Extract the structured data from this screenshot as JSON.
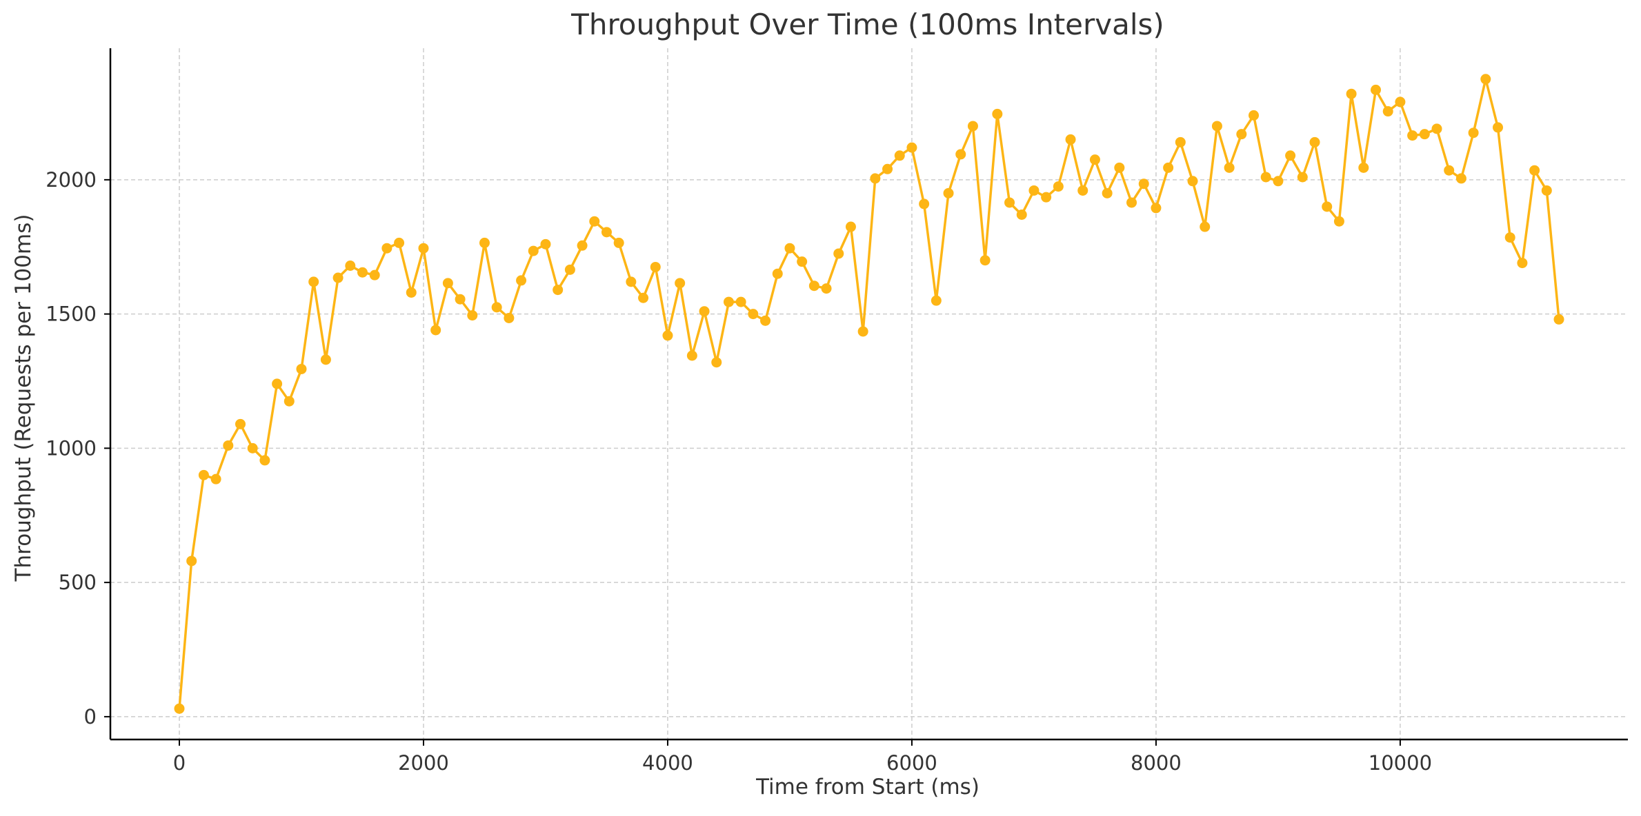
{
  "chart_data": {
    "type": "line",
    "title": "Throughput Over Time (100ms Intervals)",
    "xlabel": "Time from Start (ms)",
    "ylabel": "Throughput (Requests per 100ms)",
    "xlim": [
      -565,
      11865
    ],
    "ylim": [
      -85,
      2490
    ],
    "xticks": [
      0,
      2000,
      4000,
      6000,
      8000,
      10000
    ],
    "xtick_labels": [
      "0",
      "2000",
      "4000",
      "6000",
      "8000",
      "10000"
    ],
    "yticks": [
      0,
      500,
      1000,
      1500,
      2000
    ],
    "ytick_labels": [
      "0",
      "500",
      "1000",
      "1500",
      "2000"
    ],
    "grid": true,
    "legend": "none",
    "line_color": "#FDB515",
    "series": [
      {
        "x": [
          0,
          100,
          200,
          300,
          400,
          500,
          600,
          700,
          800,
          900,
          1000,
          1100,
          1200,
          1300,
          1400,
          1500,
          1600,
          1700,
          1800,
          1900,
          2000,
          2100,
          2200,
          2300,
          2400,
          2500,
          2600,
          2700,
          2800,
          2900,
          3000,
          3100,
          3200,
          3300,
          3400,
          3500,
          3600,
          3700,
          3800,
          3900,
          4000,
          4100,
          4200,
          4300,
          4400,
          4500,
          4600,
          4700,
          4800,
          4900,
          5000,
          5100,
          5200,
          5300,
          5400,
          5500,
          5600,
          5700,
          5800,
          5900,
          6000,
          6100,
          6200,
          6300,
          6400,
          6500,
          6600,
          6700,
          6800,
          6900,
          7000,
          7100,
          7200,
          7300,
          7400,
          7500,
          7600,
          7700,
          7800,
          7900,
          8000,
          8100,
          8200,
          8300,
          8400,
          8500,
          8600,
          8700,
          8800,
          8900,
          9000,
          9100,
          9200,
          9300,
          9400,
          9500,
          9600,
          9700,
          9800,
          9900,
          10000,
          10100,
          10200,
          10300,
          10400,
          10500,
          10600,
          10700,
          10800,
          10900,
          11000,
          11100,
          11200,
          11300
        ],
        "y": [
          30,
          580,
          900,
          885,
          1010,
          1090,
          1000,
          955,
          1240,
          1175,
          1295,
          1620,
          1330,
          1635,
          1680,
          1655,
          1645,
          1745,
          1765,
          1580,
          1745,
          1440,
          1615,
          1555,
          1495,
          1765,
          1525,
          1485,
          1625,
          1735,
          1760,
          1590,
          1665,
          1755,
          1845,
          1805,
          1765,
          1620,
          1560,
          1675,
          1420,
          1615,
          1345,
          1510,
          1320,
          1545,
          1545,
          1500,
          1475,
          1650,
          1745,
          1695,
          1605,
          1595,
          1725,
          1825,
          1435,
          2005,
          2040,
          2090,
          2120,
          1910,
          1550,
          1950,
          2095,
          2200,
          1700,
          2245,
          1915,
          1870,
          1960,
          1935,
          1975,
          2150,
          1960,
          2075,
          1950,
          2045,
          1915,
          1985,
          1895,
          2045,
          2140,
          1995,
          1825,
          2200,
          2045,
          2170,
          2240,
          2010,
          1995,
          2090,
          2010,
          2140,
          1900,
          1845,
          2320,
          2045,
          2335,
          2255,
          2290,
          2165,
          2170,
          2190,
          2035,
          2005,
          2175,
          2375,
          2195,
          1785,
          1690,
          2035,
          1960,
          1480
        ]
      }
    ]
  }
}
